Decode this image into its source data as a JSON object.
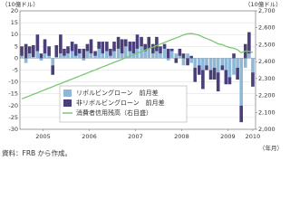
{
  "chart_data": {
    "type": "bar",
    "y_label": "（10億ドル）",
    "y2_label": "（10億ドル）",
    "x_label": "（年月）",
    "source": "資料：FRB から作成。",
    "xlim": [
      2005,
      2010.1
    ],
    "xticks": [
      {
        "value": 2005.5,
        "label": "2005"
      },
      {
        "value": 2006.5,
        "label": "2006"
      },
      {
        "value": 2007.5,
        "label": "2007"
      },
      {
        "value": 2008.5,
        "label": "2008"
      },
      {
        "value": 2009.5,
        "label": "2009"
      },
      {
        "value": 2010.04,
        "label": "2010"
      }
    ],
    "ylim": [
      -30,
      20
    ],
    "yticks": [
      -30,
      -25,
      -20,
      -15,
      -10,
      -5,
      0,
      5,
      10,
      15,
      20
    ],
    "y2lim": [
      2000,
      2700
    ],
    "y2ticks": [
      {
        "value": 2000,
        "label": "2,000"
      },
      {
        "value": 2100,
        "label": "2,100"
      },
      {
        "value": 2200,
        "label": "2,200"
      },
      {
        "value": 2300,
        "label": "2,300"
      },
      {
        "value": 2400,
        "label": "2,400"
      },
      {
        "value": 2500,
        "label": "2,500"
      },
      {
        "value": 2600,
        "label": "2,600"
      },
      {
        "value": 2700,
        "label": "2,700"
      }
    ],
    "grid": true,
    "stacked": true,
    "x": [
      2005.04,
      2005.13,
      2005.21,
      2005.29,
      2005.38,
      2005.46,
      2005.54,
      2005.63,
      2005.71,
      2005.79,
      2005.88,
      2005.96,
      2006.04,
      2006.13,
      2006.21,
      2006.29,
      2006.38,
      2006.46,
      2006.54,
      2006.63,
      2006.71,
      2006.79,
      2006.88,
      2006.96,
      2007.04,
      2007.13,
      2007.21,
      2007.29,
      2007.38,
      2007.46,
      2007.54,
      2007.63,
      2007.71,
      2007.79,
      2007.88,
      2007.96,
      2008.04,
      2008.13,
      2008.21,
      2008.29,
      2008.38,
      2008.46,
      2008.54,
      2008.63,
      2008.71,
      2008.79,
      2008.88,
      2008.96,
      2009.04,
      2009.13,
      2009.21,
      2009.29,
      2009.38,
      2009.46,
      2009.54,
      2009.63,
      2009.71,
      2009.79,
      2009.88,
      2009.96,
      2010.04
    ],
    "series": [
      {
        "name": "リボルビングローン　前月差",
        "color": "#8db8d8",
        "kind": "bar",
        "values": [
          1,
          -2,
          2,
          0.5,
          3,
          -1,
          2,
          1,
          -3,
          0.5,
          2,
          1,
          2,
          3,
          1,
          2,
          -1,
          3,
          2,
          1,
          4,
          2,
          3,
          1,
          3,
          4,
          2,
          5,
          3,
          2,
          4,
          5,
          3,
          4,
          2,
          3,
          2,
          4,
          -1,
          3,
          2,
          1,
          -3,
          2,
          -2,
          -4,
          -3,
          -5,
          -3,
          -5,
          -4,
          -6,
          -3,
          -5,
          -8,
          -7,
          -4,
          -20,
          -4,
          2,
          -6
        ]
      },
      {
        "name": "非リボルビングローン　前月差",
        "color": "#4b3f7a",
        "kind": "bar",
        "values": [
          4,
          6,
          3,
          5,
          7,
          2,
          6,
          4,
          -4,
          5,
          8,
          3,
          3,
          4,
          5,
          2,
          4,
          3,
          6,
          2,
          3,
          5,
          4,
          3,
          4,
          5,
          6,
          3,
          4,
          5,
          6,
          4,
          3,
          5,
          4,
          6,
          3,
          2,
          4,
          1,
          -2,
          3,
          2,
          -3,
          1,
          -6,
          -4,
          -8,
          -2,
          -4,
          -5,
          -8,
          -2,
          -6,
          -3,
          2,
          -5,
          -7,
          6,
          9,
          -6
        ]
      },
      {
        "name": "消費者信用残高（右目盛）",
        "color": "#7cc576",
        "kind": "line",
        "axis": "y2",
        "values": [
          2180,
          2189,
          2198,
          2207,
          2216,
          2225,
          2234,
          2243,
          2252,
          2261,
          2270,
          2279,
          2288,
          2297,
          2306,
          2315,
          2324,
          2333,
          2342,
          2351,
          2360,
          2369,
          2378,
          2387,
          2396,
          2405,
          2414,
          2423,
          2432,
          2441,
          2450,
          2459,
          2468,
          2477,
          2486,
          2495,
          2504,
          2513,
          2522,
          2531,
          2540,
          2548,
          2558,
          2564,
          2566,
          2562,
          2556,
          2545,
          2536,
          2527,
          2516,
          2505,
          2500,
          2490,
          2483,
          2479,
          2470,
          2452,
          2462,
          2460,
          2454
        ]
      }
    ]
  }
}
